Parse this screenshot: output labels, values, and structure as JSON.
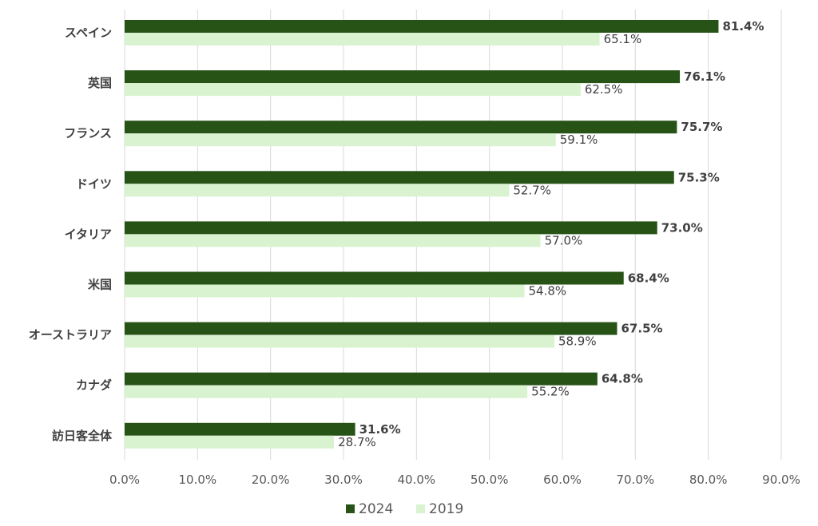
{
  "chart_data": {
    "type": "bar",
    "orientation": "horizontal",
    "categories": [
      "スペイン",
      "英国",
      "フランス",
      "ドイツ",
      "イタリア",
      "米国",
      "オーストラリア",
      "カナダ",
      "訪日客全体"
    ],
    "series": [
      {
        "name": "2024",
        "color": "#275317",
        "values": [
          81.4,
          76.1,
          75.7,
          75.3,
          73.0,
          68.4,
          67.5,
          64.8,
          31.6
        ],
        "labels": [
          "81.4%",
          "76.1%",
          "75.7%",
          "75.3%",
          "73.0%",
          "68.4%",
          "67.5%",
          "64.8%",
          "31.6%"
        ]
      },
      {
        "name": "2019",
        "color": "#d9f2d0",
        "values": [
          65.1,
          62.5,
          59.1,
          52.7,
          57.0,
          54.8,
          58.9,
          55.2,
          28.7
        ],
        "labels": [
          "65.1%",
          "62.5%",
          "59.1%",
          "52.7%",
          "57.0%",
          "54.8%",
          "58.9%",
          "55.2%",
          "28.7%"
        ]
      }
    ],
    "xlim": [
      0,
      90
    ],
    "x_ticks": [
      0,
      10,
      20,
      30,
      40,
      50,
      60,
      70,
      80,
      90
    ],
    "x_tick_labels": [
      "0.0%",
      "10.0%",
      "20.0%",
      "30.0%",
      "40.0%",
      "50.0%",
      "60.0%",
      "70.0%",
      "80.0%",
      "90.0%"
    ],
    "grid": "vertical",
    "legend_position": "bottom",
    "gridline_color": "#d9d9d9"
  }
}
